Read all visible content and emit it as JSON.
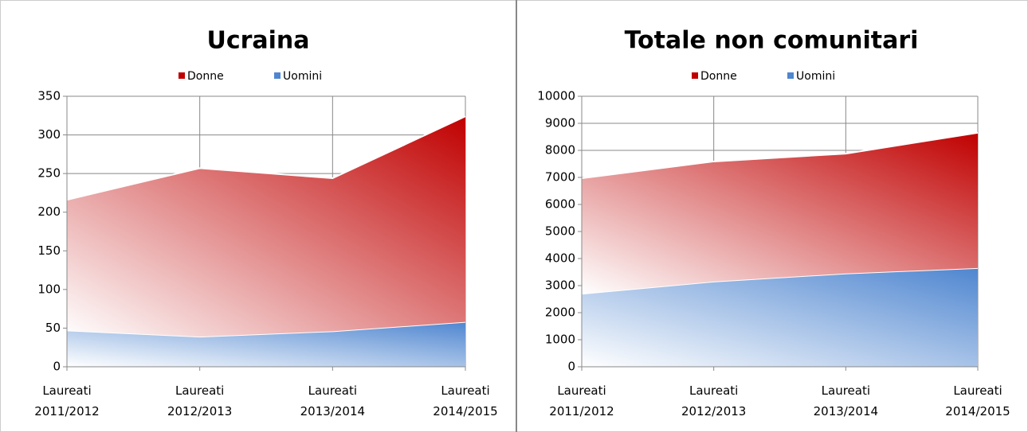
{
  "chart_data": [
    {
      "type": "area",
      "title": "Ucraina",
      "categories": [
        "Laureati 2011/2012",
        "Laureati 2012/2013",
        "Laureati 2013/2014",
        "Laureati 2014/2015"
      ],
      "series": [
        {
          "name": "Donne",
          "color": "#c00000",
          "values": [
            169,
            218,
            198,
            266
          ]
        },
        {
          "name": "Uomini",
          "color": "#4f86d0",
          "values": [
            47,
            39,
            46,
            58
          ]
        }
      ],
      "ylim": [
        0,
        350
      ],
      "yticks": [
        0,
        50,
        100,
        150,
        200,
        250,
        300,
        350
      ],
      "grid": true,
      "stacked": true,
      "legend": "top"
    },
    {
      "type": "area",
      "title": "Totale non comunitari",
      "categories": [
        "Laureati 2011/2012",
        "Laureati 2012/2013",
        "Laureati 2013/2014",
        "Laureati 2014/2015"
      ],
      "series": [
        {
          "name": "Donne",
          "color": "#c00000",
          "values": [
            4270,
            4440,
            4430,
            5000
          ]
        },
        {
          "name": "Uomini",
          "color": "#4f86d0",
          "values": [
            2700,
            3150,
            3450,
            3650
          ]
        }
      ],
      "ylim": [
        0,
        10000
      ],
      "yticks": [
        0,
        1000,
        2000,
        3000,
        4000,
        5000,
        6000,
        7000,
        8000,
        9000,
        10000
      ],
      "grid": true,
      "stacked": true,
      "legend": "top"
    }
  ]
}
